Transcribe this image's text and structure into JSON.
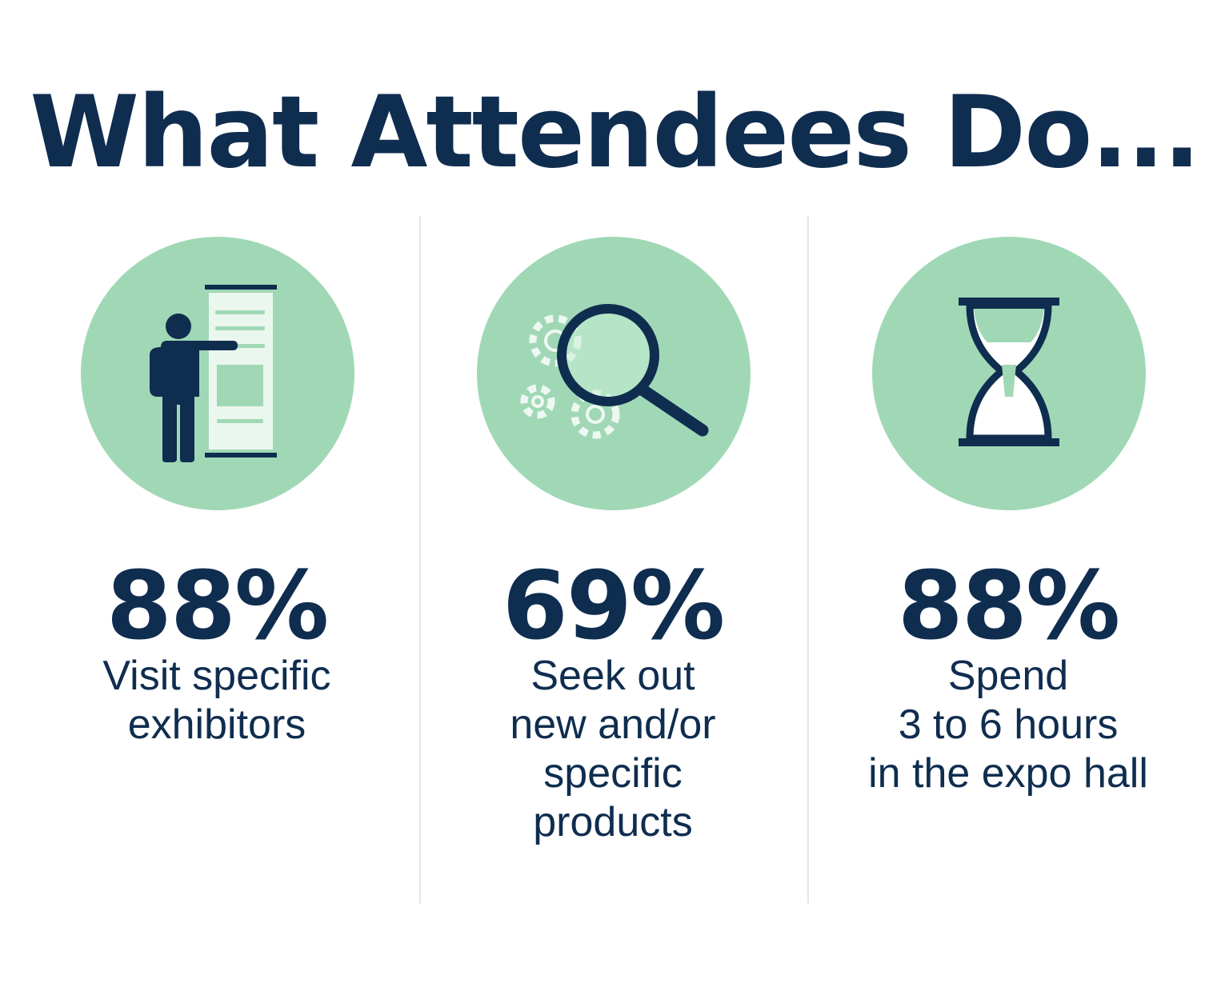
{
  "title": "What Attendees Do...",
  "colors": {
    "navy": "#0f2d4f",
    "mint": "#a0d8b6",
    "divider": "#e2e7ea"
  },
  "items": [
    {
      "icon": "presenter-at-banner-icon",
      "stat": "88%",
      "lines": [
        "Visit specific",
        "exhibitors"
      ]
    },
    {
      "icon": "magnifier-gears-icon",
      "stat": "69%",
      "lines": [
        "Seek out",
        "new and/or",
        "specific",
        "products"
      ]
    },
    {
      "icon": "hourglass-icon",
      "stat": "88%",
      "lines": [
        "Spend",
        "3 to 6 hours",
        "in the expo hall"
      ]
    }
  ]
}
